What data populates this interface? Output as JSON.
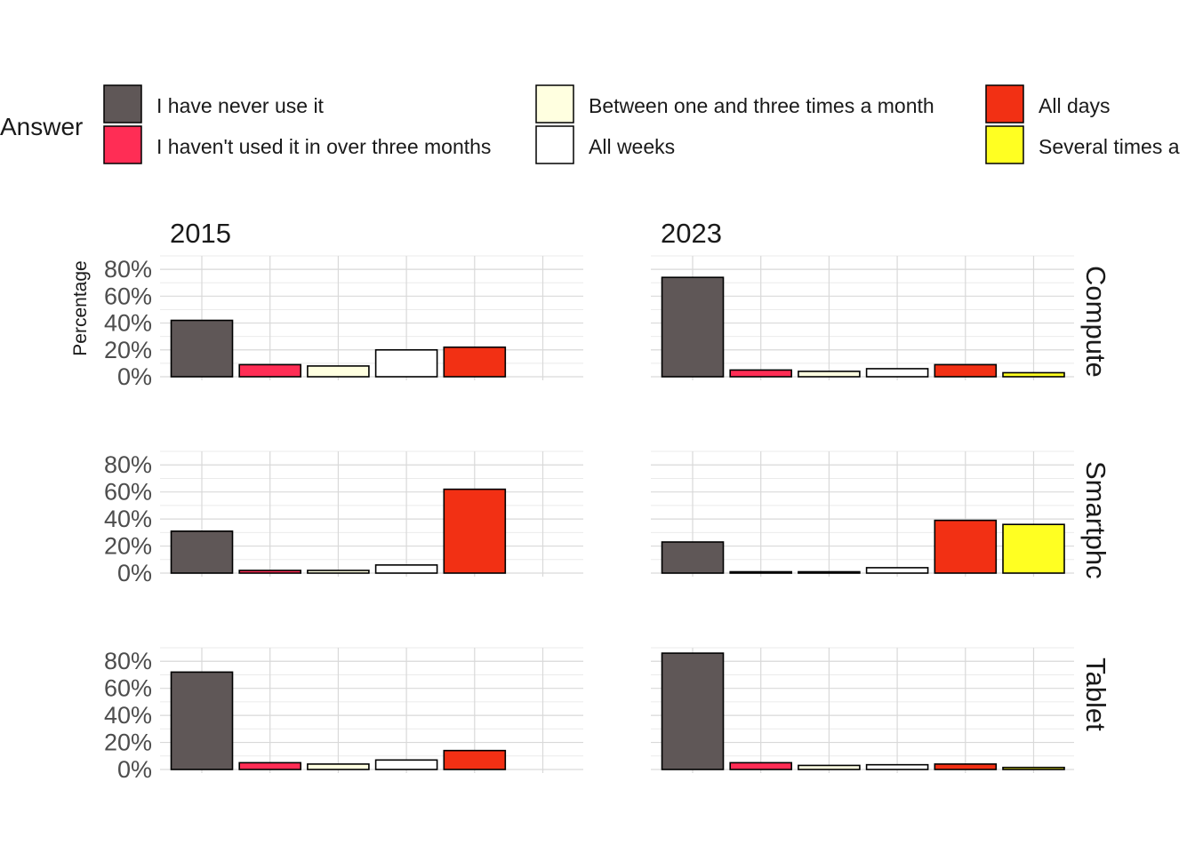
{
  "chart_data": {
    "type": "bar",
    "legend_title": "Answer",
    "legend_position": "top",
    "ylabel": "Percentage",
    "ylim": [
      0,
      0.9
    ],
    "y_ticks": [
      "0%",
      "20%",
      "40%",
      "60%",
      "80%"
    ],
    "y_tick_values": [
      0,
      0.2,
      0.4,
      0.6,
      0.8
    ],
    "grid": true,
    "categories": [
      "I have never use it",
      "I haven't used it in over three months",
      "Between one and three times a month",
      "All weeks",
      "All days",
      "Several times a day"
    ],
    "legend_labels": [
      "I have never use it",
      "I haven't used it in over three months",
      "Between one and three times a month",
      "All weeks",
      "All days",
      "Several times a"
    ],
    "colors": [
      "#5f5757",
      "#ff2d55",
      "#ffffe0",
      "#ffffff",
      "#f23014",
      "#ffff22"
    ],
    "columns": [
      "2015",
      "2023"
    ],
    "rows": [
      "Compute",
      "Smartphc",
      "Tablet"
    ],
    "panels": [
      {
        "year": "2015",
        "device": "Compute",
        "values": [
          0.42,
          0.09,
          0.08,
          0.2,
          0.22,
          null
        ]
      },
      {
        "year": "2023",
        "device": "Compute",
        "values": [
          0.74,
          0.05,
          0.04,
          0.06,
          0.09,
          0.03
        ]
      },
      {
        "year": "2015",
        "device": "Smartphc",
        "values": [
          0.31,
          0.02,
          0.02,
          0.06,
          0.62,
          null
        ]
      },
      {
        "year": "2023",
        "device": "Smartphc",
        "values": [
          0.23,
          0.005,
          0.005,
          0.04,
          0.39,
          0.36
        ]
      },
      {
        "year": "2015",
        "device": "Tablet",
        "values": [
          0.72,
          0.05,
          0.04,
          0.07,
          0.14,
          null
        ]
      },
      {
        "year": "2023",
        "device": "Tablet",
        "values": [
          0.86,
          0.05,
          0.03,
          0.035,
          0.04,
          0.015
        ]
      }
    ]
  }
}
